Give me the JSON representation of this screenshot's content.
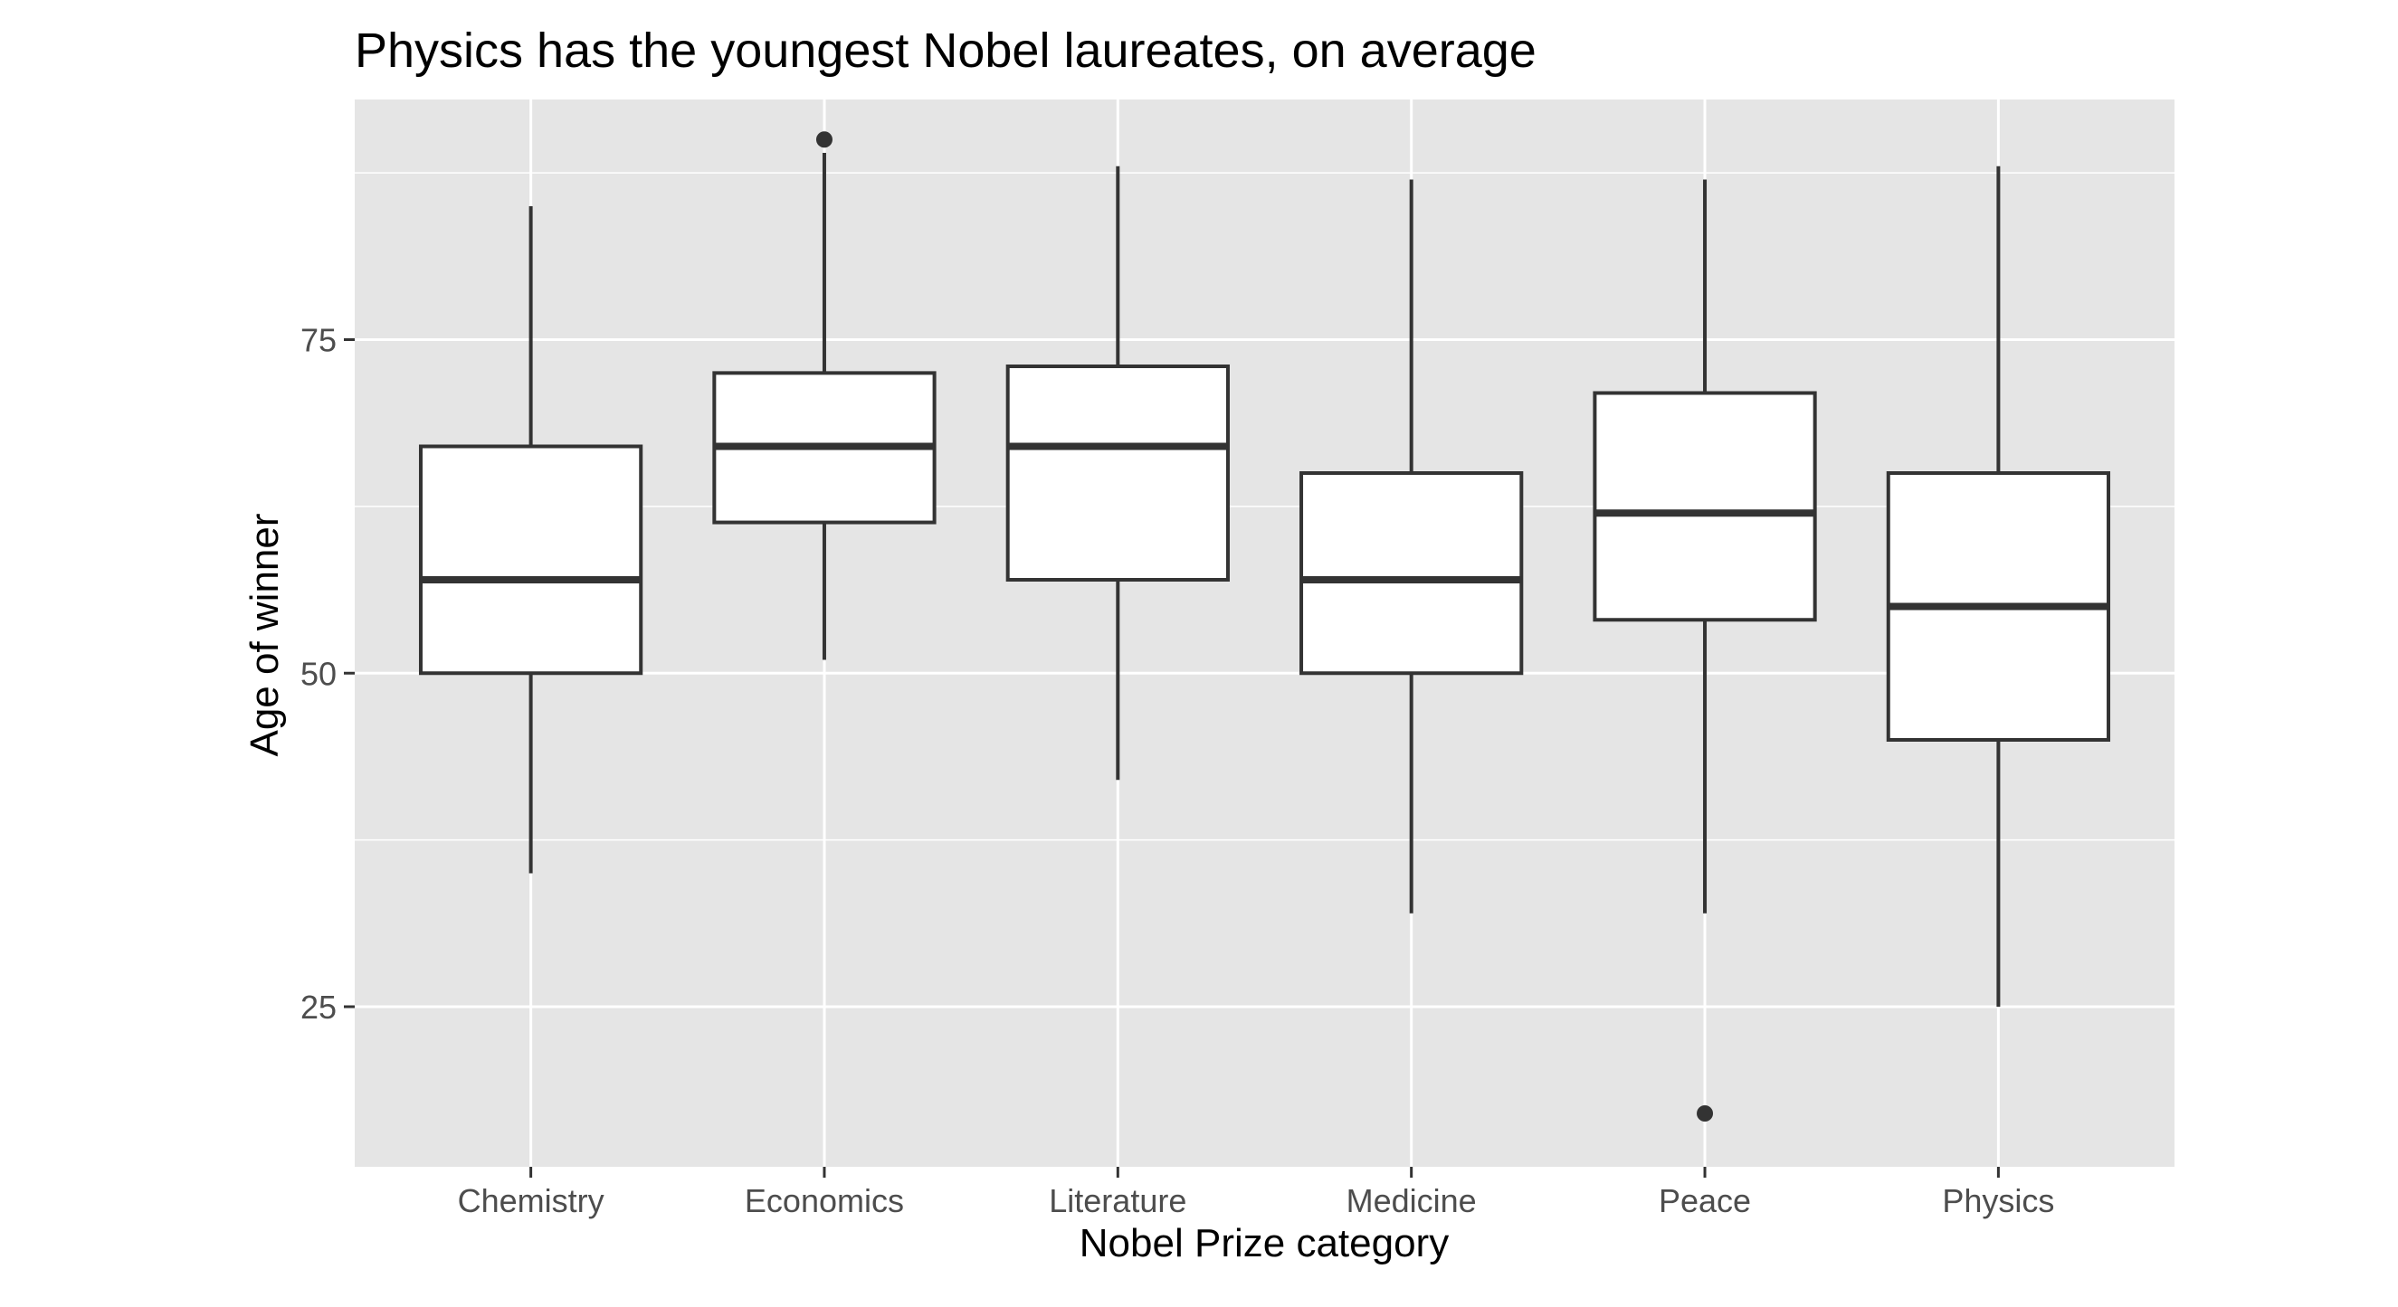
{
  "chart_data": {
    "type": "boxplot",
    "title": "Physics has the youngest Nobel laureates, on average",
    "xlabel": "Nobel Prize category",
    "ylabel": "Age of winner",
    "ylim": [
      13,
      93
    ],
    "yticks": [
      25,
      50,
      75
    ],
    "y_gridlines_minor": [
      37.5,
      62.5,
      87.5
    ],
    "grid": true,
    "categories": [
      "Chemistry",
      "Economics",
      "Literature",
      "Medicine",
      "Peace",
      "Physics"
    ],
    "boxes": [
      {
        "category": "Chemistry",
        "whisker_low": 35,
        "q1": 50,
        "median": 57,
        "q3": 67,
        "whisker_high": 85,
        "outliers": []
      },
      {
        "category": "Economics",
        "whisker_low": 51,
        "q1": 61.3,
        "median": 67,
        "q3": 72.5,
        "whisker_high": 89,
        "outliers": [
          90
        ]
      },
      {
        "category": "Literature",
        "whisker_low": 42,
        "q1": 57,
        "median": 67,
        "q3": 73,
        "whisker_high": 88,
        "outliers": []
      },
      {
        "category": "Medicine",
        "whisker_low": 32,
        "q1": 50,
        "median": 57,
        "q3": 65,
        "whisker_high": 87,
        "outliers": []
      },
      {
        "category": "Peace",
        "whisker_low": 32,
        "q1": 54,
        "median": 62,
        "q3": 71,
        "whisker_high": 87,
        "outliers": [
          17
        ]
      },
      {
        "category": "Physics",
        "whisker_low": 25,
        "q1": 45,
        "median": 55,
        "q3": 65,
        "whisker_high": 88,
        "outliers": []
      }
    ],
    "colors": {
      "panel_background": "#e5e5e5",
      "grid": "#ffffff",
      "box_fill": "#ffffff",
      "box_stroke": "#333333",
      "tick_text": "#4d4d4d"
    }
  }
}
